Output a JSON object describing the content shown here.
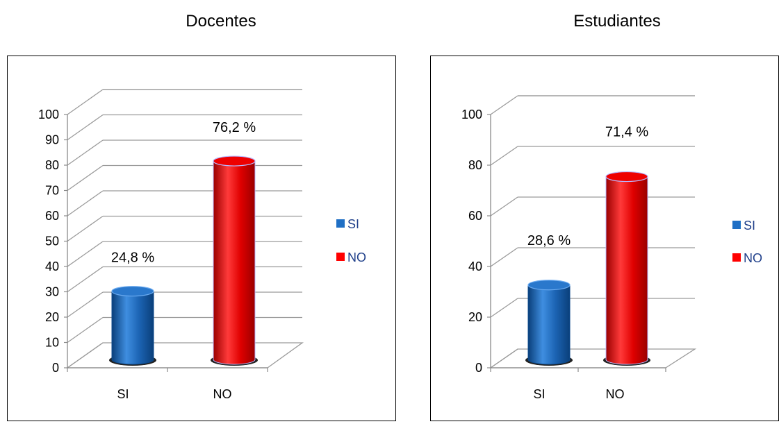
{
  "chart_data": [
    {
      "type": "bar",
      "title": "Docentes",
      "categories": [
        "SI",
        "NO"
      ],
      "series": [
        {
          "name": "",
          "values": [
            24.8,
            76.2
          ]
        }
      ],
      "data_labels": [
        "24,8 %",
        "76,2 %"
      ],
      "ylim": [
        0,
        100
      ],
      "yticks": [
        0,
        10,
        20,
        30,
        40,
        50,
        60,
        70,
        80,
        90,
        100
      ],
      "grid": true,
      "legend": {
        "position": "right",
        "entries": [
          "SI",
          "NO"
        ]
      },
      "colors": [
        "#1f6fc5",
        "#ff0000"
      ]
    },
    {
      "type": "bar",
      "title": "Estudiantes",
      "categories": [
        "SI",
        "NO"
      ],
      "series": [
        {
          "name": "",
          "values": [
            28.6,
            71.4
          ]
        }
      ],
      "data_labels": [
        "28,6 %",
        "71,4 %"
      ],
      "ylim": [
        0,
        100
      ],
      "yticks": [
        0,
        20,
        40,
        60,
        80,
        100
      ],
      "grid": true,
      "legend": {
        "position": "right",
        "entries": [
          "SI",
          "NO"
        ]
      },
      "colors": [
        "#1f6fc5",
        "#ff0000"
      ]
    }
  ]
}
